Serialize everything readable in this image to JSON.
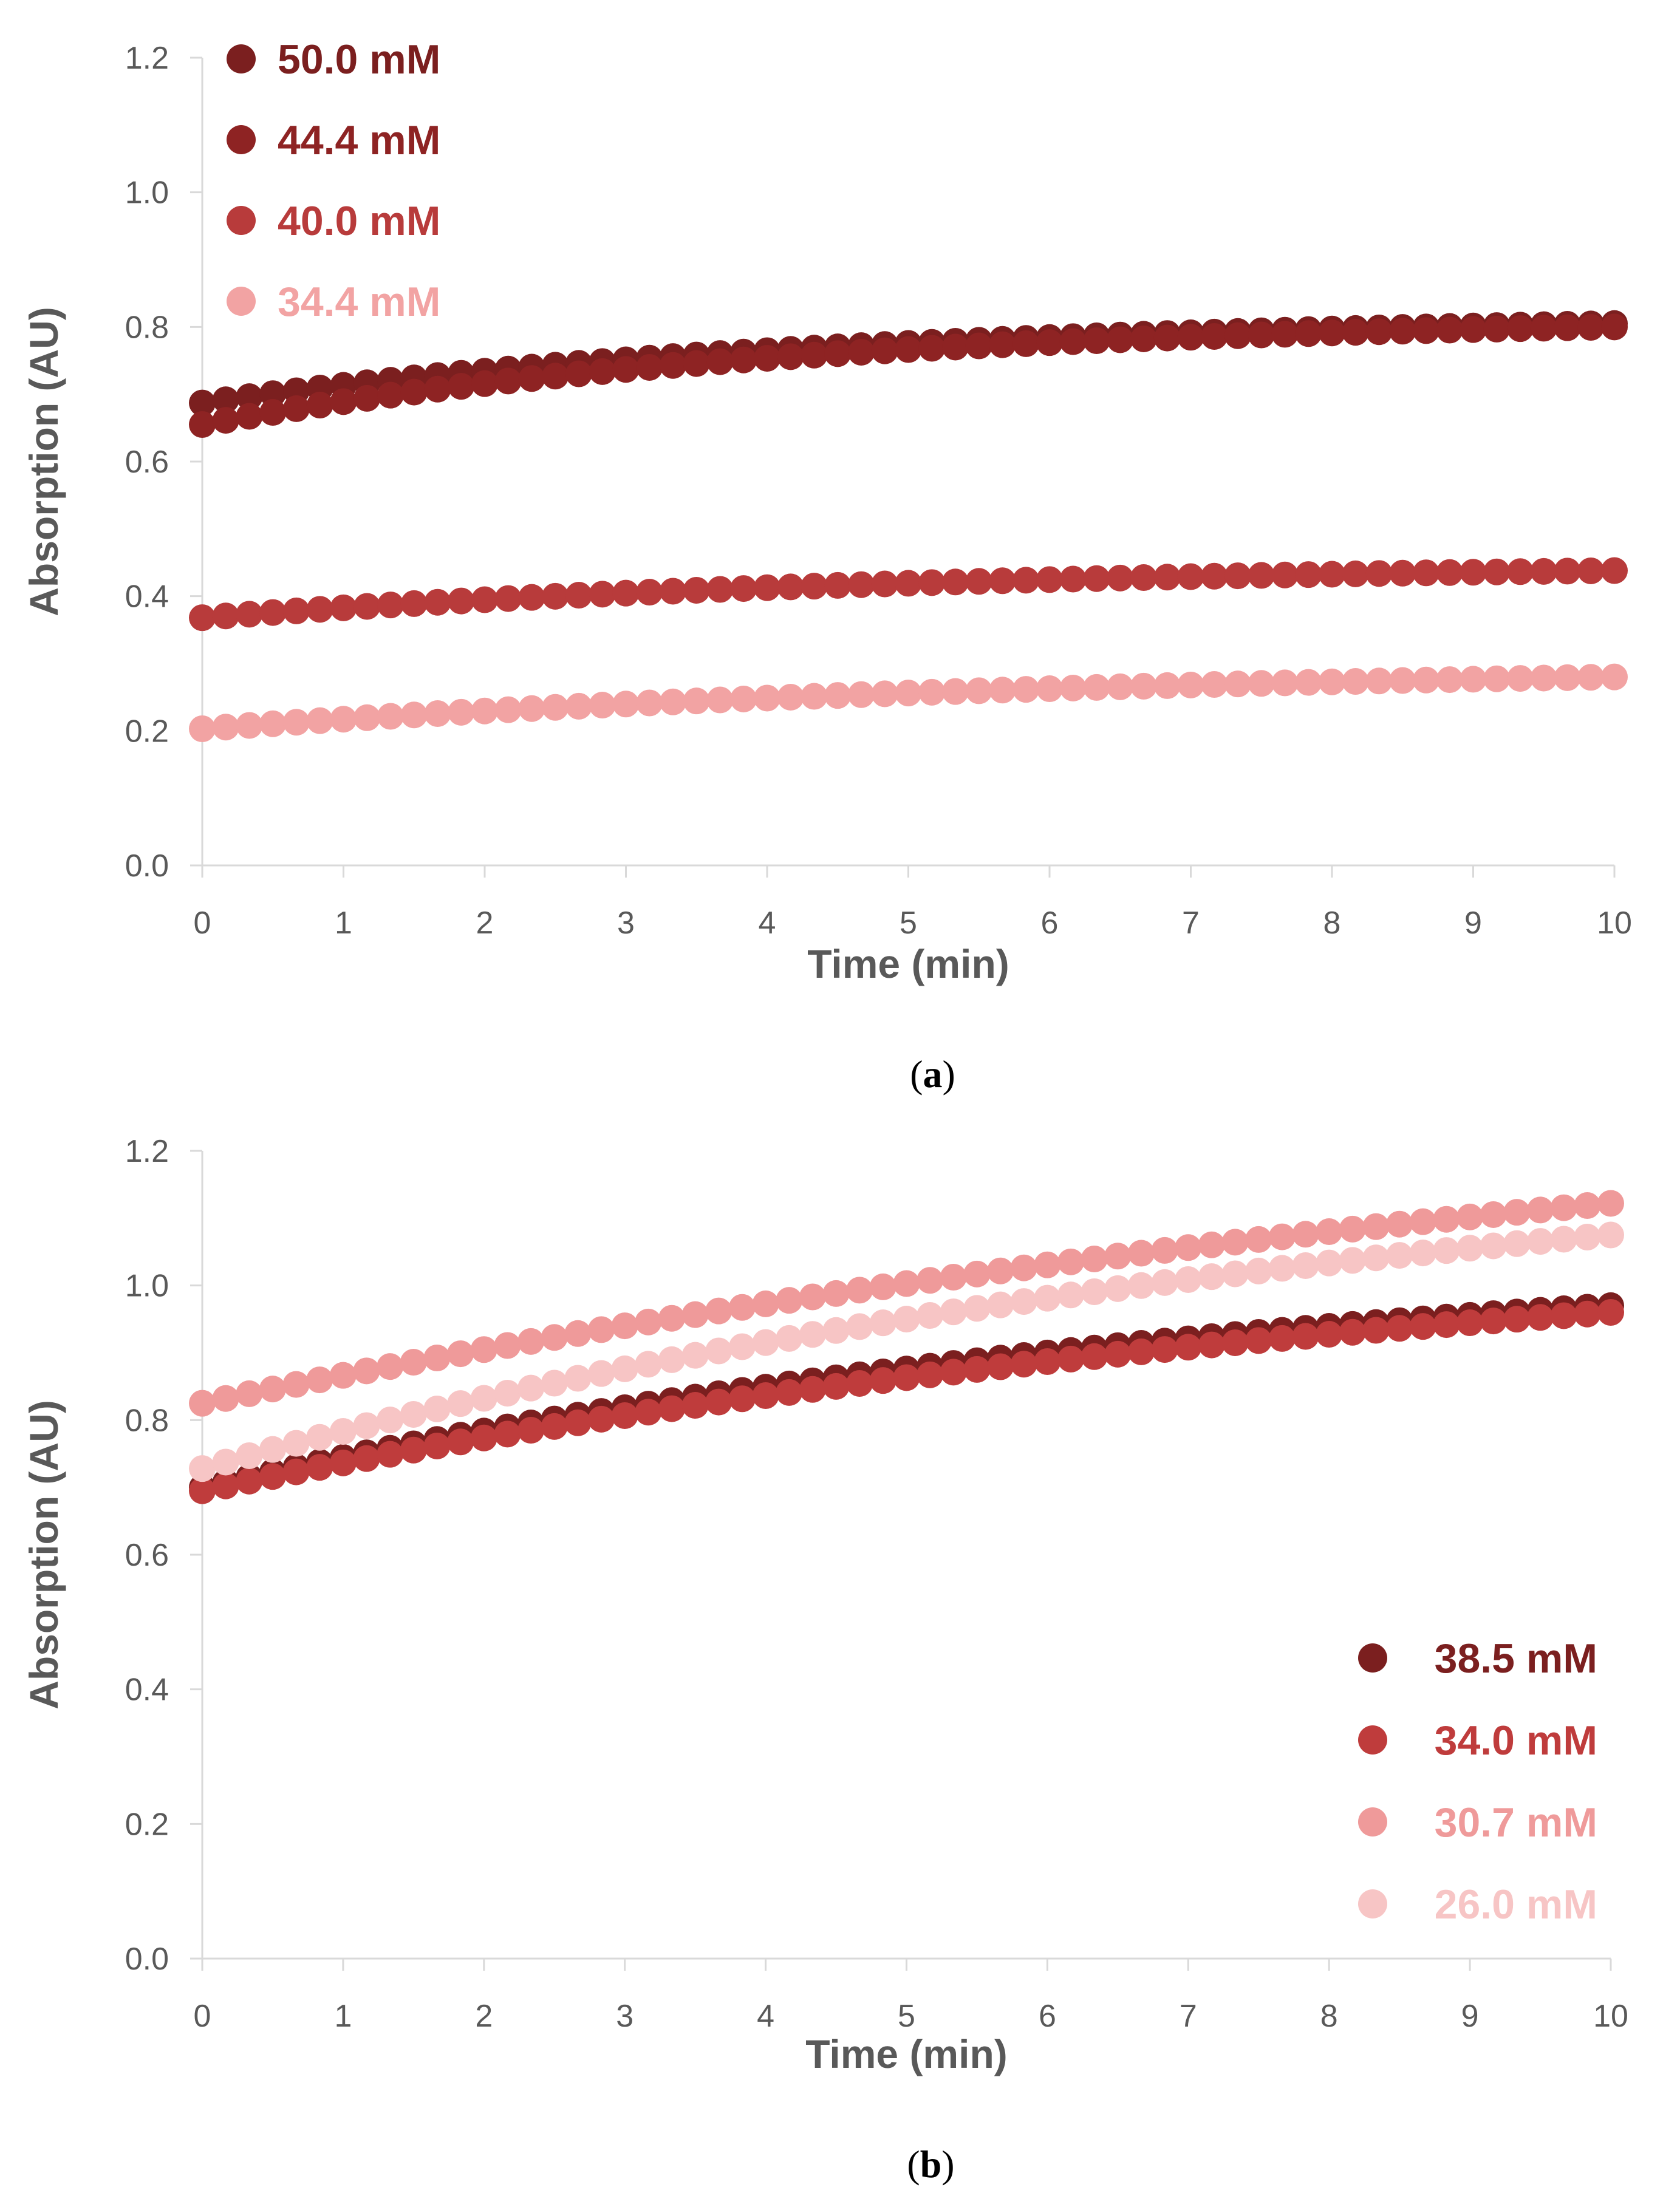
{
  "chart_data": [
    {
      "type": "scatter",
      "panel_label": "a",
      "xlabel": "Time (min)",
      "ylabel": "Absorption (AU)",
      "xlim": [
        0,
        10
      ],
      "ylim": [
        0,
        1.2
      ],
      "xticks": [
        "0",
        "1",
        "2",
        "3",
        "4",
        "5",
        "6",
        "7",
        "8",
        "9",
        "10"
      ],
      "yticks": [
        "0.0",
        "0.2",
        "0.4",
        "0.6",
        "0.8",
        "1.0",
        "1.2"
      ],
      "grid": false,
      "legend_position": "top-left",
      "points_per_series": 61,
      "series": [
        {
          "name": "50.0 mM",
          "color": "#7b1f1f",
          "start": 0.687,
          "end": 0.805,
          "curve": 2.2
        },
        {
          "name": "44.4 mM",
          "color": "#8e2323",
          "start": 0.655,
          "end": 0.8,
          "curve": 2.4
        },
        {
          "name": "40.0 mM",
          "color": "#b83b3b",
          "start": 0.368,
          "end": 0.438,
          "curve": 2.0
        },
        {
          "name": "34.4 mM",
          "color": "#f2a3a3",
          "start": 0.203,
          "end": 0.28,
          "curve": 1.6
        }
      ]
    },
    {
      "type": "scatter",
      "panel_label": "b",
      "xlabel": "Time (min)",
      "ylabel": "Absorption (AU)",
      "xlim": [
        0,
        10
      ],
      "ylim": [
        0,
        1.2
      ],
      "xticks": [
        "0",
        "1",
        "2",
        "3",
        "4",
        "5",
        "6",
        "7",
        "8",
        "9",
        "10"
      ],
      "yticks": [
        "0.0",
        "0.2",
        "0.4",
        "0.6",
        "0.8",
        "1.0",
        "1.2"
      ],
      "grid": false,
      "legend_position": "bottom-right",
      "points_per_series": 61,
      "series": [
        {
          "name": "38.5 mM",
          "color": "#7b1f1f",
          "start": 0.7,
          "end": 0.97,
          "curve": 1.25
        },
        {
          "name": "34.0 mM",
          "color": "#bf3c3c",
          "start": 0.695,
          "end": 0.96,
          "curve": 1.1
        },
        {
          "name": "30.7 mM",
          "color": "#ef9a9a",
          "start": 0.825,
          "end": 1.122,
          "curve": 0.8
        },
        {
          "name": "26.0 mM",
          "color": "#f7c5c5",
          "start": 0.728,
          "end": 1.075,
          "curve": 1.15
        }
      ]
    }
  ]
}
